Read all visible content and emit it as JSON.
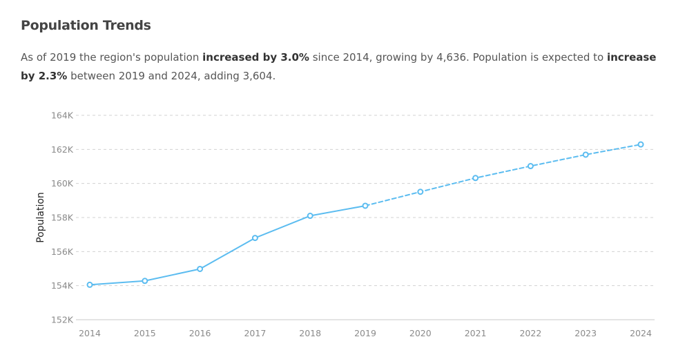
{
  "header": {
    "title": "Population Trends"
  },
  "summary": {
    "p1": "As of 2019 the region's population ",
    "b1": "increased by 3.0%",
    "p2": " since 2014, growing by 4,636. Population is expected to ",
    "b2": "increase by 2.3%",
    "p3": " between 2019 and 2024, adding 3,604."
  },
  "chart_data": {
    "type": "line",
    "title": "",
    "xlabel": "",
    "ylabel": "Population",
    "x": [
      "2014",
      "2015",
      "2016",
      "2017",
      "2018",
      "2019",
      "2020",
      "2021",
      "2022",
      "2023",
      "2024"
    ],
    "series": [
      {
        "values": [
          154050,
          154280,
          154980,
          156800,
          158100,
          158690,
          null,
          null,
          null,
          null,
          null
        ],
        "style": "solid"
      },
      {
        "values": [
          null,
          null,
          null,
          null,
          null,
          158690,
          159510,
          160320,
          161020,
          161690,
          162290
        ],
        "style": "dashed"
      }
    ],
    "ylim": [
      152000,
      164000
    ],
    "yticks": [
      152000,
      154000,
      156000,
      158000,
      160000,
      162000,
      164000
    ],
    "ytick_labels": [
      "152K",
      "154K",
      "156K",
      "158K",
      "160K",
      "162K",
      "164K"
    ],
    "grid": true,
    "line_color": "#5bbcf0"
  }
}
